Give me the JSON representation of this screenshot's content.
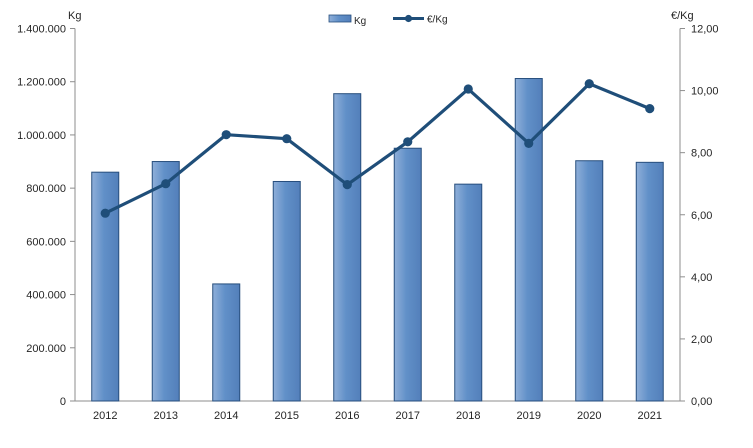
{
  "chart_data": {
    "type": "combo",
    "title": "",
    "categories": [
      "2012",
      "2013",
      "2014",
      "2015",
      "2016",
      "2017",
      "2018",
      "2019",
      "2020",
      "2021"
    ],
    "series": [
      {
        "name": "Kg",
        "type": "bar",
        "axis": "left",
        "values": [
          860000,
          900000,
          440000,
          825000,
          1155000,
          950000,
          815000,
          1212000,
          903000,
          897000
        ]
      },
      {
        "name": "€/Kg",
        "type": "line",
        "axis": "right",
        "values": [
          6.05,
          7.0,
          8.58,
          8.45,
          6.97,
          8.35,
          10.05,
          8.3,
          10.22,
          9.42
        ]
      }
    ],
    "left_axis": {
      "title": "Kg",
      "min": 0,
      "max": 1400000,
      "step": 200000,
      "tick_labels": [
        "0",
        "200.000",
        "400.000",
        "600.000",
        "800.000",
        "1.000.000",
        "1.200.000",
        "1.400.000"
      ]
    },
    "right_axis": {
      "title": "€/Kg",
      "min": 0,
      "max": 12,
      "step": 2,
      "tick_labels": [
        "0,00",
        "2,00",
        "4,00",
        "6,00",
        "8,00",
        "10,00",
        "12,00"
      ]
    },
    "legend": {
      "position": "top",
      "entries": [
        {
          "label": "Kg",
          "swatch": "bar"
        },
        {
          "label": "€/Kg",
          "swatch": "line-marker"
        }
      ]
    },
    "grid": false,
    "colors": {
      "bar_fill": "#6190C8",
      "bar_fill_light": "#8FAFD9",
      "bar_fill_dark": "#537FBA",
      "bar_border": "#274E7D",
      "line": "#1F4E79",
      "axis_line": "#8E8E8E",
      "text": "#262626"
    }
  }
}
